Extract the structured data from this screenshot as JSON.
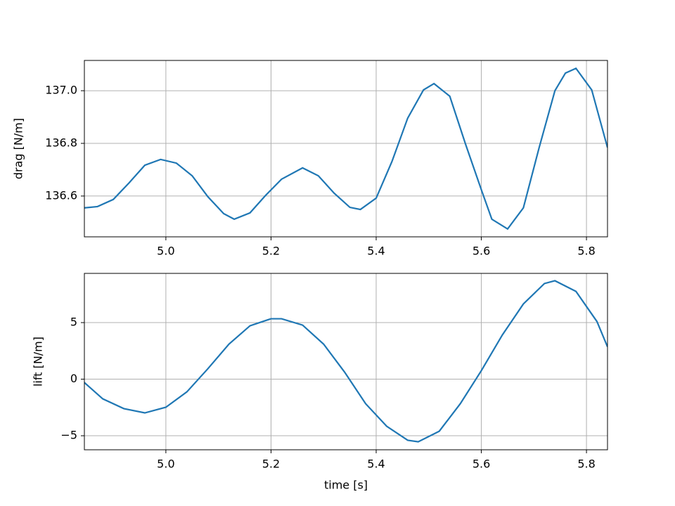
{
  "chart_data": [
    {
      "type": "line",
      "ylabel": "drag [N/m]",
      "color": "#1f77b4",
      "grid": true,
      "xlim": [
        4.845,
        5.84
      ],
      "xticks": [
        {
          "value": 5,
          "label": "5.0"
        },
        5.2,
        5.4,
        5.6,
        5.8
      ],
      "ylim": [
        136.445,
        137.115
      ],
      "yticks": [
        136.6,
        136.8,
        {
          "value": 137,
          "label": "137.0"
        }
      ],
      "x": [
        4.845,
        4.87,
        4.9,
        4.93,
        4.96,
        4.99,
        5.02,
        5.05,
        5.08,
        5.11,
        5.13,
        5.16,
        5.19,
        5.22,
        5.26,
        5.29,
        5.32,
        5.35,
        5.37,
        5.4,
        5.43,
        5.46,
        5.49,
        5.51,
        5.54,
        5.57,
        5.6,
        5.62,
        5.65,
        5.68,
        5.71,
        5.74,
        5.76,
        5.78,
        5.81,
        5.84
      ],
      "values": [
        136.555,
        136.56,
        136.587,
        136.65,
        136.717,
        136.739,
        136.725,
        136.677,
        136.597,
        136.533,
        136.512,
        136.536,
        136.603,
        136.664,
        136.707,
        136.677,
        136.611,
        136.557,
        136.549,
        136.592,
        136.731,
        136.896,
        137.003,
        137.027,
        136.979,
        136.797,
        136.624,
        136.512,
        136.475,
        136.555,
        136.784,
        137.0,
        137.067,
        137.085,
        137.003,
        136.784
      ]
    },
    {
      "type": "line",
      "ylabel": "lift [N/m]",
      "xlabel": "time [s]",
      "color": "#1f77b4",
      "grid": true,
      "xlim": [
        4.845,
        5.84
      ],
      "xticks": [
        {
          "value": 5,
          "label": "5.0"
        },
        5.2,
        5.4,
        5.6,
        5.8
      ],
      "ylim": [
        -6.24,
        9.35
      ],
      "yticks": [
        {
          "value": -5,
          "label": "−5"
        },
        0,
        5
      ],
      "x": [
        4.845,
        4.88,
        4.92,
        4.96,
        5.0,
        5.04,
        5.08,
        5.12,
        5.16,
        5.2,
        5.22,
        5.26,
        5.3,
        5.34,
        5.38,
        5.42,
        5.46,
        5.48,
        5.52,
        5.56,
        5.6,
        5.64,
        5.68,
        5.72,
        5.74,
        5.78,
        5.82,
        5.84
      ],
      "values": [
        -0.3,
        -1.74,
        -2.6,
        -2.98,
        -2.48,
        -1.12,
        0.93,
        3.1,
        4.72,
        5.34,
        5.34,
        4.78,
        3.1,
        0.62,
        -2.17,
        -4.16,
        -5.4,
        -5.53,
        -4.6,
        -2.17,
        0.75,
        3.91,
        6.65,
        8.45,
        8.7,
        7.76,
        5.09,
        2.86
      ]
    }
  ]
}
